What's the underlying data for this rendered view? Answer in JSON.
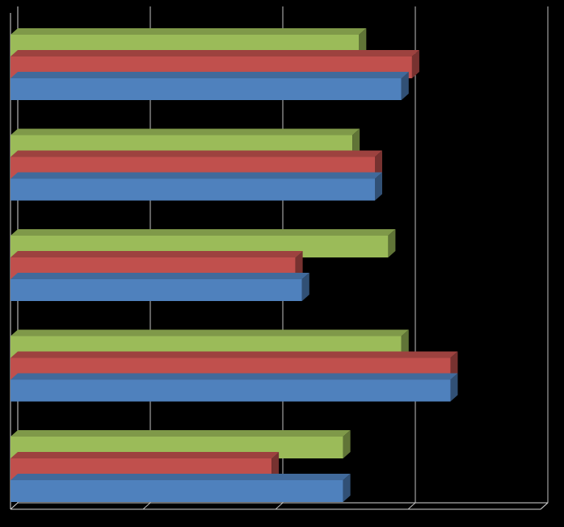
{
  "chart_data": {
    "type": "bar",
    "orientation": "horizontal",
    "style": "3d-clustered",
    "categories": [
      "",
      "",
      "",
      "",
      ""
    ],
    "series": [
      {
        "color": "#9BBB59",
        "values": [
          2.63,
          2.58,
          2.85,
          2.95,
          2.51
        ]
      },
      {
        "color": "#C0504D",
        "values": [
          3.03,
          2.75,
          2.15,
          3.32,
          1.97
        ]
      },
      {
        "color": "#4F81BD",
        "values": [
          2.95,
          2.75,
          2.2,
          3.32,
          2.51
        ]
      }
    ],
    "xlim": [
      0,
      4
    ],
    "grid": true,
    "legend": "none",
    "background": "#000000"
  }
}
